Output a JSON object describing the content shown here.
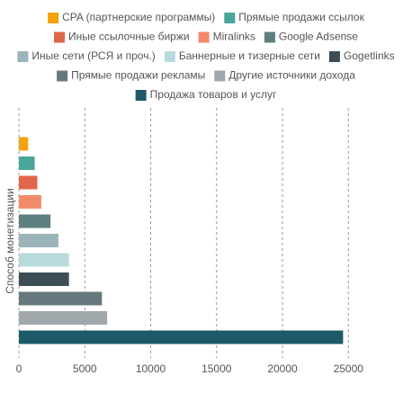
{
  "chart_data": {
    "type": "bar",
    "orientation": "horizontal",
    "y_label": "Способ монетизации",
    "categories": [
      "CPA (партнерские программы)",
      "Прямые продажи ссылок",
      "Иные ссылочные биржи",
      "Miralinks",
      "Google Adsense",
      "Иные сети (РСЯ и проч.)",
      "Баннерные и тизерные сети",
      "Gogetlinks",
      "Прямые продажи рекламы",
      "Другие источники дохода",
      "Продажа товаров и услуг"
    ],
    "values": [
      700,
      1200,
      1400,
      1700,
      2400,
      3000,
      3800,
      3800,
      6300,
      6700,
      24600
    ],
    "colors": [
      "#f5a20a",
      "#4aa59a",
      "#e0664a",
      "#f28b6a",
      "#5d7f80",
      "#9bb4ba",
      "#b9d9dd",
      "#3d4d55",
      "#66787e",
      "#a0a8ab",
      "#1d5a69"
    ],
    "xlim": [
      0,
      28600
    ],
    "xticks": [
      0,
      5000,
      10000,
      15000,
      20000,
      25000
    ],
    "grid": true
  }
}
